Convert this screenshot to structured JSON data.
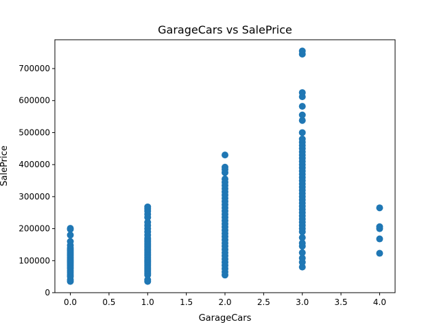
{
  "chart_data": {
    "type": "scatter",
    "title": "GarageCars vs SalePrice",
    "xlabel": "GarageCars",
    "ylabel": "SalePrice",
    "xlim": [
      -0.2,
      4.2
    ],
    "ylim": [
      0,
      790000
    ],
    "xticks": [
      0.0,
      0.5,
      1.0,
      1.5,
      2.0,
      2.5,
      3.0,
      3.5,
      4.0
    ],
    "xtick_labels": [
      "0.0",
      "0.5",
      "1.0",
      "1.5",
      "2.0",
      "2.5",
      "3.0",
      "3.5",
      "4.0"
    ],
    "yticks": [
      0,
      100000,
      200000,
      300000,
      400000,
      500000,
      600000,
      700000
    ],
    "ytick_labels": [
      "0",
      "100000",
      "200000",
      "300000",
      "400000",
      "500000",
      "600000",
      "700000"
    ],
    "grid": false,
    "marker_color": "#1f77b4",
    "points": [
      {
        "x": 0,
        "y": 35000
      },
      {
        "x": 0,
        "y": 40000
      },
      {
        "x": 0,
        "y": 50000
      },
      {
        "x": 0,
        "y": 55000
      },
      {
        "x": 0,
        "y": 62000
      },
      {
        "x": 0,
        "y": 68000
      },
      {
        "x": 0,
        "y": 75000
      },
      {
        "x": 0,
        "y": 80000
      },
      {
        "x": 0,
        "y": 85000
      },
      {
        "x": 0,
        "y": 90000
      },
      {
        "x": 0,
        "y": 95000
      },
      {
        "x": 0,
        "y": 100000
      },
      {
        "x": 0,
        "y": 105000
      },
      {
        "x": 0,
        "y": 110000
      },
      {
        "x": 0,
        "y": 115000
      },
      {
        "x": 0,
        "y": 120000
      },
      {
        "x": 0,
        "y": 125000
      },
      {
        "x": 0,
        "y": 130000
      },
      {
        "x": 0,
        "y": 135000
      },
      {
        "x": 0,
        "y": 140000
      },
      {
        "x": 0,
        "y": 148000
      },
      {
        "x": 0,
        "y": 160000
      },
      {
        "x": 0,
        "y": 180000
      },
      {
        "x": 0,
        "y": 198000
      },
      {
        "x": 0,
        "y": 201000
      },
      {
        "x": 1,
        "y": 35000
      },
      {
        "x": 1,
        "y": 40000
      },
      {
        "x": 1,
        "y": 55000
      },
      {
        "x": 1,
        "y": 60000
      },
      {
        "x": 1,
        "y": 65000
      },
      {
        "x": 1,
        "y": 70000
      },
      {
        "x": 1,
        "y": 75000
      },
      {
        "x": 1,
        "y": 80000
      },
      {
        "x": 1,
        "y": 85000
      },
      {
        "x": 1,
        "y": 90000
      },
      {
        "x": 1,
        "y": 95000
      },
      {
        "x": 1,
        "y": 100000
      },
      {
        "x": 1,
        "y": 105000
      },
      {
        "x": 1,
        "y": 110000
      },
      {
        "x": 1,
        "y": 115000
      },
      {
        "x": 1,
        "y": 120000
      },
      {
        "x": 1,
        "y": 125000
      },
      {
        "x": 1,
        "y": 130000
      },
      {
        "x": 1,
        "y": 135000
      },
      {
        "x": 1,
        "y": 140000
      },
      {
        "x": 1,
        "y": 145000
      },
      {
        "x": 1,
        "y": 150000
      },
      {
        "x": 1,
        "y": 155000
      },
      {
        "x": 1,
        "y": 160000
      },
      {
        "x": 1,
        "y": 165000
      },
      {
        "x": 1,
        "y": 170000
      },
      {
        "x": 1,
        "y": 180000
      },
      {
        "x": 1,
        "y": 190000
      },
      {
        "x": 1,
        "y": 200000
      },
      {
        "x": 1,
        "y": 210000
      },
      {
        "x": 1,
        "y": 220000
      },
      {
        "x": 1,
        "y": 235000
      },
      {
        "x": 1,
        "y": 245000
      },
      {
        "x": 1,
        "y": 255000
      },
      {
        "x": 1,
        "y": 262000
      },
      {
        "x": 1,
        "y": 268000
      },
      {
        "x": 2,
        "y": 55000
      },
      {
        "x": 2,
        "y": 65000
      },
      {
        "x": 2,
        "y": 75000
      },
      {
        "x": 2,
        "y": 85000
      },
      {
        "x": 2,
        "y": 95000
      },
      {
        "x": 2,
        "y": 105000
      },
      {
        "x": 2,
        "y": 115000
      },
      {
        "x": 2,
        "y": 125000
      },
      {
        "x": 2,
        "y": 135000
      },
      {
        "x": 2,
        "y": 145000
      },
      {
        "x": 2,
        "y": 155000
      },
      {
        "x": 2,
        "y": 165000
      },
      {
        "x": 2,
        "y": 175000
      },
      {
        "x": 2,
        "y": 185000
      },
      {
        "x": 2,
        "y": 195000
      },
      {
        "x": 2,
        "y": 205000
      },
      {
        "x": 2,
        "y": 215000
      },
      {
        "x": 2,
        "y": 225000
      },
      {
        "x": 2,
        "y": 235000
      },
      {
        "x": 2,
        "y": 245000
      },
      {
        "x": 2,
        "y": 255000
      },
      {
        "x": 2,
        "y": 265000
      },
      {
        "x": 2,
        "y": 275000
      },
      {
        "x": 2,
        "y": 285000
      },
      {
        "x": 2,
        "y": 295000
      },
      {
        "x": 2,
        "y": 305000
      },
      {
        "x": 2,
        "y": 315000
      },
      {
        "x": 2,
        "y": 325000
      },
      {
        "x": 2,
        "y": 335000
      },
      {
        "x": 2,
        "y": 345000
      },
      {
        "x": 2,
        "y": 355000
      },
      {
        "x": 2,
        "y": 375000
      },
      {
        "x": 2,
        "y": 385000
      },
      {
        "x": 2,
        "y": 392000
      },
      {
        "x": 2,
        "y": 430000
      },
      {
        "x": 3,
        "y": 80000
      },
      {
        "x": 3,
        "y": 95000
      },
      {
        "x": 3,
        "y": 108000
      },
      {
        "x": 3,
        "y": 125000
      },
      {
        "x": 3,
        "y": 145000
      },
      {
        "x": 3,
        "y": 155000
      },
      {
        "x": 3,
        "y": 172000
      },
      {
        "x": 3,
        "y": 190000
      },
      {
        "x": 3,
        "y": 200000
      },
      {
        "x": 3,
        "y": 210000
      },
      {
        "x": 3,
        "y": 220000
      },
      {
        "x": 3,
        "y": 230000
      },
      {
        "x": 3,
        "y": 240000
      },
      {
        "x": 3,
        "y": 250000
      },
      {
        "x": 3,
        "y": 260000
      },
      {
        "x": 3,
        "y": 270000
      },
      {
        "x": 3,
        "y": 280000
      },
      {
        "x": 3,
        "y": 290000
      },
      {
        "x": 3,
        "y": 300000
      },
      {
        "x": 3,
        "y": 310000
      },
      {
        "x": 3,
        "y": 320000
      },
      {
        "x": 3,
        "y": 330000
      },
      {
        "x": 3,
        "y": 340000
      },
      {
        "x": 3,
        "y": 350000
      },
      {
        "x": 3,
        "y": 360000
      },
      {
        "x": 3,
        "y": 370000
      },
      {
        "x": 3,
        "y": 380000
      },
      {
        "x": 3,
        "y": 390000
      },
      {
        "x": 3,
        "y": 400000
      },
      {
        "x": 3,
        "y": 410000
      },
      {
        "x": 3,
        "y": 420000
      },
      {
        "x": 3,
        "y": 430000
      },
      {
        "x": 3,
        "y": 440000
      },
      {
        "x": 3,
        "y": 450000
      },
      {
        "x": 3,
        "y": 460000
      },
      {
        "x": 3,
        "y": 470000
      },
      {
        "x": 3,
        "y": 480000
      },
      {
        "x": 3,
        "y": 500000
      },
      {
        "x": 3,
        "y": 538000
      },
      {
        "x": 3,
        "y": 555000
      },
      {
        "x": 3,
        "y": 582000
      },
      {
        "x": 3,
        "y": 612000
      },
      {
        "x": 3,
        "y": 625000
      },
      {
        "x": 3,
        "y": 745000
      },
      {
        "x": 3,
        "y": 755000
      },
      {
        "x": 4,
        "y": 123000
      },
      {
        "x": 4,
        "y": 168000
      },
      {
        "x": 4,
        "y": 200000
      },
      {
        "x": 4,
        "y": 206000
      },
      {
        "x": 4,
        "y": 265000
      }
    ]
  }
}
